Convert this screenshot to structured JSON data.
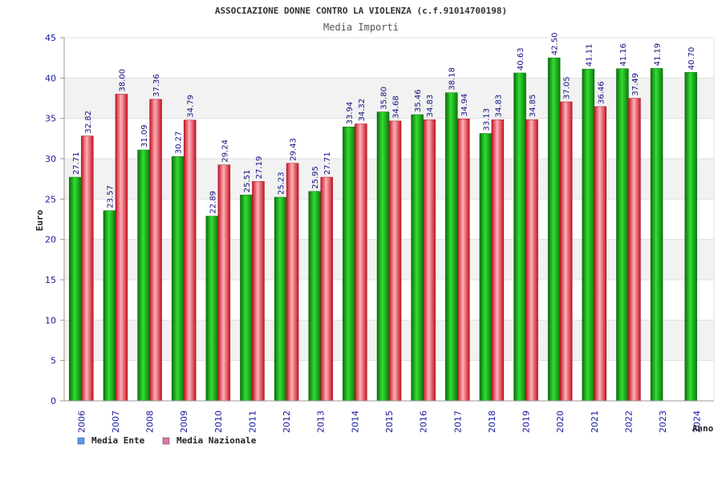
{
  "chart_data": {
    "type": "bar",
    "title": "ASSOCIAZIONE DONNE CONTRO LA VIOLENZA (c.f.91014700198)",
    "subtitle": "Media Importi",
    "xlabel": "Anno",
    "ylabel": "Euro",
    "ylim": [
      0,
      45
    ],
    "yticks": [
      0,
      5,
      10,
      15,
      20,
      25,
      30,
      35,
      40,
      45
    ],
    "grid": true,
    "legend_position": "bottom-left",
    "categories": [
      "2006",
      "2007",
      "2008",
      "2009",
      "2010",
      "2011",
      "2012",
      "2013",
      "2014",
      "2015",
      "2016",
      "2017",
      "2018",
      "2019",
      "2020",
      "2021",
      "2022",
      "2023",
      "2024"
    ],
    "series": [
      {
        "name": "Media Ente",
        "bar_color": "#1aa31a",
        "legend_color": "#5599ee",
        "values": [
          27.71,
          23.57,
          31.09,
          30.27,
          22.89,
          25.51,
          25.23,
          25.95,
          33.94,
          35.8,
          35.46,
          38.18,
          33.13,
          40.63,
          42.5,
          41.11,
          41.16,
          41.19,
          40.7
        ],
        "labels": [
          "27.71",
          "23.57",
          "31.09",
          "30.27",
          "22.89",
          "25.51",
          "25.23",
          "25.95",
          "33.94",
          "35.80",
          "35.46",
          "38.18",
          "33.13",
          "40.63",
          "42.50",
          "41.11",
          "41.16",
          "41.19",
          "40.70"
        ]
      },
      {
        "name": "Media Nazionale",
        "bar_color": "#dd2233",
        "legend_color": "#dd77aa",
        "values": [
          32.82,
          38.0,
          37.36,
          34.79,
          29.24,
          27.19,
          29.43,
          27.71,
          34.32,
          34.68,
          34.83,
          34.94,
          34.83,
          34.85,
          37.05,
          36.46,
          37.49,
          null,
          null
        ],
        "labels": [
          "32.82",
          "38.00",
          "37.36",
          "34.79",
          "29.24",
          "27.19",
          "29.43",
          "27.71",
          "34.32",
          "34.68",
          "34.83",
          "34.94",
          "34.83",
          "34.85",
          "37.05",
          "36.46",
          "37.49",
          null,
          null
        ]
      }
    ]
  }
}
